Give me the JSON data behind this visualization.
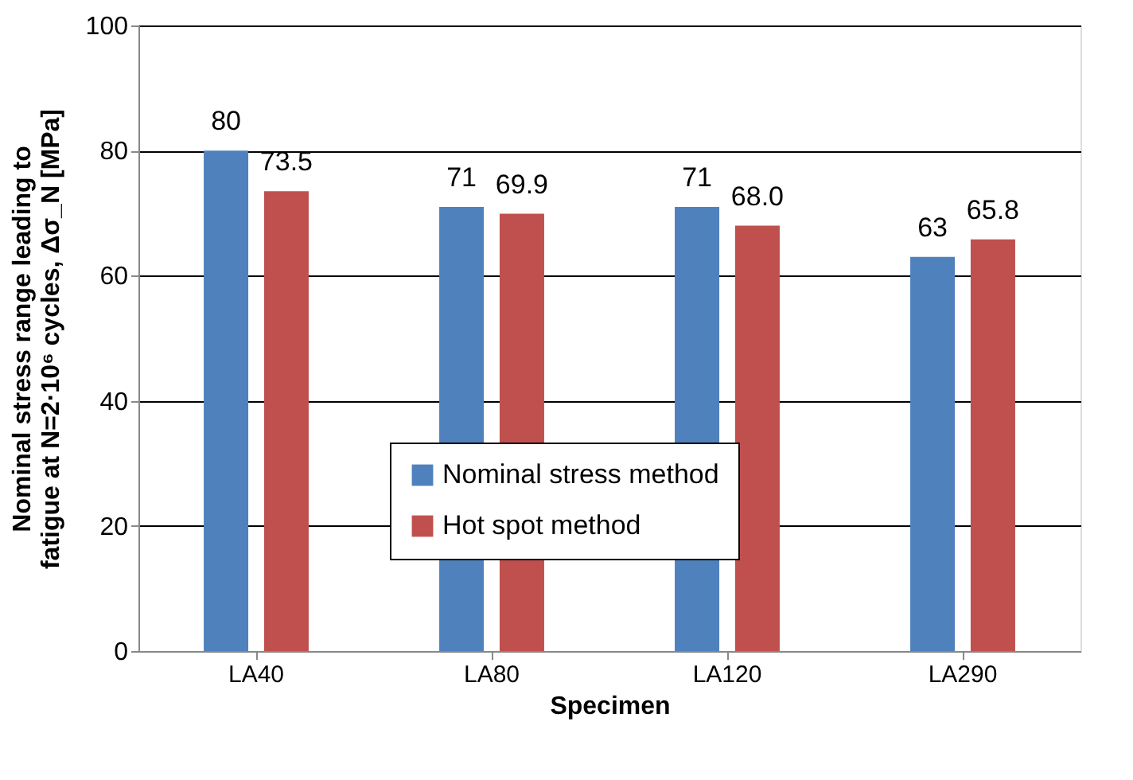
{
  "chart_data": {
    "type": "bar",
    "xlabel": "Specimen",
    "ylabel": "Nominal stress range leading to\nfatigue at N=2·10⁶ cycles, Δσ_N [MPa]",
    "categories": [
      "LA40",
      "LA80",
      "LA120",
      "LA290"
    ],
    "series": [
      {
        "name": "Nominal stress method",
        "color": "#4f81bd",
        "values": [
          80,
          71,
          71,
          63
        ],
        "value_labels": [
          "80",
          "71",
          "71",
          "63"
        ]
      },
      {
        "name": "Hot spot method",
        "color": "#c0504d",
        "values": [
          73.5,
          69.9,
          68.0,
          65.8
        ],
        "value_labels": [
          "73.5",
          "69.9",
          "68.0",
          "65.8"
        ]
      }
    ],
    "ylim": [
      0,
      100
    ],
    "yticks": [
      0,
      20,
      40,
      60,
      80,
      100
    ],
    "grid": "y",
    "legend": "bottom"
  }
}
